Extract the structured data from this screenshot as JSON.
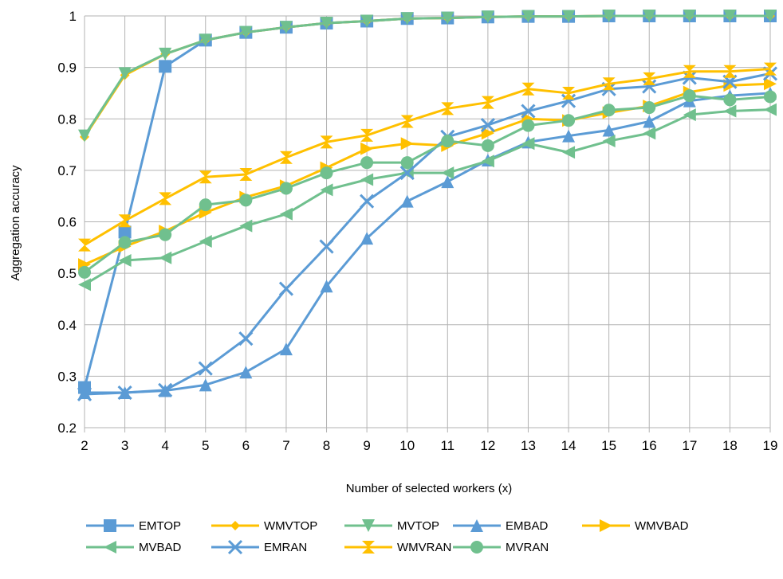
{
  "chart_data": {
    "type": "line",
    "title": "",
    "xlabel": "Number of selected workers (x)",
    "ylabel": "Aggregation accuracy",
    "x": [
      2,
      3,
      4,
      5,
      6,
      7,
      8,
      9,
      10,
      11,
      12,
      13,
      14,
      15,
      16,
      17,
      18,
      19
    ],
    "xlim": [
      2,
      19
    ],
    "ylim": [
      0.2,
      1.0
    ],
    "yticks": [
      "0.2",
      "0.3",
      "0.4",
      "0.5",
      "0.6",
      "0.7",
      "0.8",
      "0.9",
      "1"
    ],
    "grid": true,
    "legend_position": "bottom",
    "series": [
      {
        "name": "EMTOP",
        "color": "#5b9bd5",
        "marker": "square",
        "values": [
          0.278,
          0.58,
          0.902,
          0.953,
          0.968,
          0.978,
          0.986,
          0.99,
          0.995,
          0.996,
          0.998,
          0.999,
          0.999,
          1.0,
          1.0,
          1.0,
          1.0,
          1.0
        ]
      },
      {
        "name": "WMVTOP",
        "color": "#ffc000",
        "marker": "diamond",
        "values": [
          0.765,
          0.885,
          0.926,
          0.953,
          0.968,
          0.978,
          0.986,
          0.99,
          0.995,
          0.996,
          0.998,
          0.999,
          0.999,
          1.0,
          1.0,
          1.0,
          1.0,
          1.0
        ]
      },
      {
        "name": "MVTOP",
        "color": "#70c08e",
        "marker": "triangle-down",
        "values": [
          0.767,
          0.888,
          0.926,
          0.953,
          0.968,
          0.978,
          0.986,
          0.99,
          0.995,
          0.996,
          0.998,
          0.999,
          0.999,
          1.0,
          1.0,
          1.0,
          1.0,
          1.0
        ]
      },
      {
        "name": "EMBAD",
        "color": "#5b9bd5",
        "marker": "triangle-up",
        "values": [
          0.268,
          0.268,
          0.272,
          0.283,
          0.308,
          0.353,
          0.475,
          0.568,
          0.64,
          0.678,
          0.72,
          0.755,
          0.767,
          0.778,
          0.795,
          0.835,
          0.845,
          0.85
        ]
      },
      {
        "name": "WMVBAD",
        "color": "#ffc000",
        "marker": "triangle-right",
        "values": [
          0.517,
          0.552,
          0.582,
          0.618,
          0.648,
          0.67,
          0.705,
          0.742,
          0.752,
          0.748,
          0.772,
          0.8,
          0.797,
          0.812,
          0.825,
          0.852,
          0.865,
          0.868
        ]
      },
      {
        "name": "MVBAD",
        "color": "#70c08e",
        "marker": "triangle-left",
        "values": [
          0.478,
          0.525,
          0.53,
          0.562,
          0.592,
          0.615,
          0.662,
          0.682,
          0.695,
          0.695,
          0.718,
          0.752,
          0.735,
          0.757,
          0.772,
          0.808,
          0.815,
          0.818
        ]
      },
      {
        "name": "EMRAN",
        "color": "#5b9bd5",
        "marker": "x",
        "values": [
          0.265,
          0.268,
          0.273,
          0.315,
          0.373,
          0.47,
          0.552,
          0.64,
          0.695,
          0.765,
          0.788,
          0.815,
          0.835,
          0.858,
          0.863,
          0.88,
          0.872,
          0.888
        ]
      },
      {
        "name": "WMVRAN",
        "color": "#ffc000",
        "marker": "hourglass",
        "values": [
          0.555,
          0.602,
          0.645,
          0.687,
          0.692,
          0.725,
          0.755,
          0.768,
          0.795,
          0.82,
          0.832,
          0.858,
          0.85,
          0.868,
          0.878,
          0.892,
          0.892,
          0.897
        ]
      },
      {
        "name": "MVRAN",
        "color": "#70c08e",
        "marker": "circle",
        "values": [
          0.502,
          0.56,
          0.575,
          0.633,
          0.642,
          0.665,
          0.695,
          0.715,
          0.715,
          0.757,
          0.748,
          0.787,
          0.797,
          0.817,
          0.822,
          0.845,
          0.837,
          0.843
        ]
      }
    ]
  }
}
